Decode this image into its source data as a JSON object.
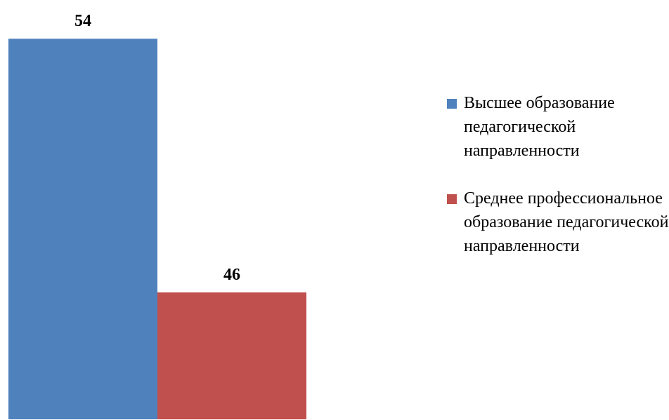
{
  "chart_data": {
    "type": "bar",
    "categories": [
      null
    ],
    "series": [
      {
        "name": "Высшее образование педагогической направленности",
        "color": "#4f81bd",
        "values": [
          54
        ]
      },
      {
        "name": "Среднее профессиональное образование педагогической направленности",
        "color": "#c0504d",
        "values": [
          46
        ]
      }
    ],
    "ylim": [
      42,
      55
    ],
    "legend": "right"
  }
}
